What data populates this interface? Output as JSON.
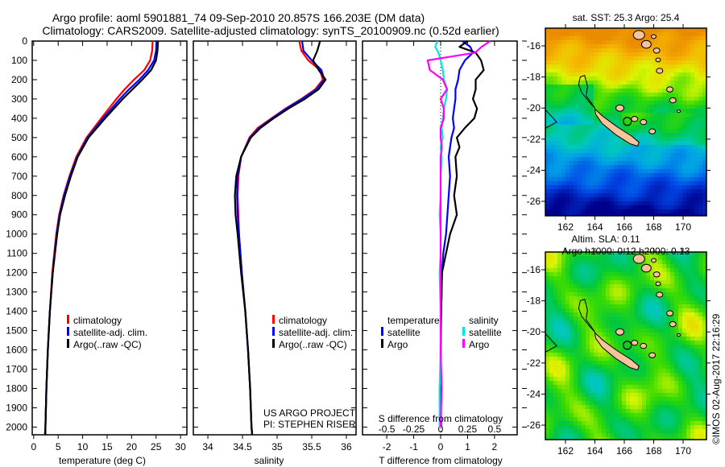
{
  "title": {
    "line1": "Argo profile: aoml 5901881_74 09-Sep-2010 20.857S 166.203E (DM data)",
    "line2": "Climatology: CARS2009. Satellite-adjusted climatology: synTS_20100909.nc (0.52d earlier)"
  },
  "timestamp": "©IMOS 02-Aug-2017 22:16:29",
  "colors": {
    "climatology": "#ff0000",
    "satellite": "#0000ff",
    "argo": "#000000",
    "sal_satellite": "#00e5e5",
    "sal_argo": "#ff00ff",
    "land": "#f7c39a"
  },
  "chart_data": [
    {
      "type": "line",
      "name": "temperature-profile",
      "xlabel": "temperature (deg C)",
      "ylabel": "depth",
      "xlim": [
        -0.3,
        31.3
      ],
      "ylim": [
        2040,
        0
      ],
      "xticks": [
        0,
        5,
        10,
        15,
        20,
        25,
        30
      ],
      "xtick_labels": [
        "0",
        "5",
        "10",
        "15",
        "20",
        "25",
        "30"
      ],
      "yticks": [
        0,
        100,
        200,
        300,
        400,
        500,
        600,
        700,
        800,
        900,
        1000,
        1100,
        1200,
        1300,
        1400,
        1500,
        1600,
        1700,
        1800,
        1900,
        2000
      ],
      "depth": [
        0,
        50,
        100,
        150,
        200,
        250,
        300,
        400,
        500,
        600,
        700,
        800,
        900,
        1000,
        1200,
        1400,
        1600,
        1800,
        2000,
        2040
      ],
      "series": [
        {
          "name": "climatology",
          "values": [
            24.3,
            24.2,
            23.8,
            22.6,
            20.5,
            18.6,
            16.9,
            13.8,
            10.8,
            8.7,
            7.3,
            6.1,
            5.2,
            4.6,
            3.8,
            3.3,
            2.9,
            2.6,
            2.4,
            2.3
          ]
        },
        {
          "name": "satellite-adj. clim.",
          "values": [
            25.1,
            25.0,
            24.6,
            23.4,
            21.6,
            19.5,
            17.6,
            14.2,
            11.0,
            8.9,
            7.4,
            6.2,
            5.3,
            4.7,
            3.9,
            3.3,
            2.9,
            2.6,
            2.4,
            2.3
          ]
        },
        {
          "name": "Argo(..raw -QC)",
          "values": [
            25.4,
            25.3,
            25.0,
            24.0,
            22.2,
            20.2,
            18.2,
            14.6,
            11.2,
            9.0,
            7.6,
            6.4,
            5.4,
            4.8,
            3.9,
            3.3,
            2.9,
            2.6,
            2.4,
            2.4
          ]
        }
      ],
      "legend": [
        "climatology",
        "satellite-adj. clim.",
        "Argo(..raw -QC)"
      ]
    },
    {
      "type": "line",
      "name": "salinity-profile",
      "xlabel": "salinity",
      "xlim": [
        33.79,
        36.14
      ],
      "ylim": [
        2040,
        0
      ],
      "xticks": [
        34,
        34.5,
        35,
        35.5,
        36
      ],
      "xtick_labels": [
        "34",
        "34.5",
        "35",
        "35.5",
        "36"
      ],
      "depth": [
        0,
        50,
        100,
        150,
        200,
        250,
        300,
        350,
        400,
        450,
        500,
        600,
        700,
        800,
        900,
        1000,
        1200,
        1400,
        1600,
        1800,
        2000,
        2040
      ],
      "series": [
        {
          "name": "climatology",
          "values": [
            35.32,
            35.35,
            35.45,
            35.62,
            35.66,
            35.55,
            35.35,
            35.12,
            34.92,
            34.72,
            34.6,
            34.48,
            34.44,
            34.43,
            34.44,
            34.45,
            34.49,
            34.54,
            34.58,
            34.61,
            34.63,
            34.64
          ]
        },
        {
          "name": "satellite-adj. clim.",
          "values": [
            35.36,
            35.38,
            35.5,
            35.64,
            35.68,
            35.57,
            35.36,
            35.13,
            34.93,
            34.74,
            34.61,
            34.48,
            34.43,
            34.42,
            34.43,
            34.45,
            34.49,
            34.54,
            34.58,
            34.61,
            34.63,
            34.64
          ]
        },
        {
          "name": "Argo(..raw -QC)",
          "values": [
            35.62,
            35.58,
            35.52,
            35.6,
            35.7,
            35.6,
            35.4,
            35.16,
            34.95,
            34.76,
            34.62,
            34.48,
            34.41,
            34.39,
            34.4,
            34.43,
            34.48,
            34.54,
            34.58,
            34.61,
            34.63,
            34.64
          ]
        }
      ],
      "legend": [
        "climatology",
        "satellite-adj. clim.",
        "Argo(..raw -QC)"
      ],
      "annotation": [
        "US ARGO PROJECT",
        "PI: STEPHEN RISER"
      ]
    },
    {
      "type": "line",
      "name": "difference-profile",
      "xlabel": "T difference from climatology",
      "xlabel2": "S difference from climatology",
      "xlim": [
        -2.9,
        2.84
      ],
      "xlim_s": [
        -0.725,
        0.71
      ],
      "ylim": [
        2040,
        0
      ],
      "xticks": [
        -2,
        -1,
        0,
        1,
        2
      ],
      "xtick_labels": [
        "-2",
        "-1",
        "0",
        "1",
        "2"
      ],
      "xticks_s": [
        -0.5,
        -0.25,
        0,
        0.25,
        0.5
      ],
      "xtick_labels_s": [
        "-0.5",
        "-0.25",
        "0",
        "0.25",
        "0.5"
      ],
      "depth": [
        0,
        30,
        60,
        100,
        150,
        200,
        250,
        300,
        350,
        400,
        450,
        500,
        550,
        600,
        700,
        800,
        900,
        1000,
        1100,
        1200,
        1400,
        1600,
        1800,
        2000
      ],
      "series": [
        {
          "name": "temperature satellite",
          "var": "T",
          "values": [
            0.8,
            1.1,
            1.2,
            0.9,
            0.7,
            0.65,
            0.55,
            0.55,
            0.5,
            0.45,
            0.5,
            0.4,
            0.35,
            0.3,
            0.35,
            0.3,
            0.25,
            0.2,
            0.1,
            0.05,
            0.02,
            0.01,
            0.0,
            0.02
          ]
        },
        {
          "name": "temperature Argo",
          "var": "T",
          "values": [
            1.0,
            0.7,
            1.3,
            1.5,
            1.6,
            1.3,
            1.3,
            1.2,
            1.35,
            1.25,
            0.9,
            0.6,
            0.7,
            0.55,
            0.6,
            0.5,
            0.6,
            0.35,
            0.2,
            0.05,
            0.02,
            0.0,
            0.0,
            0.0
          ]
        },
        {
          "name": "salinity satellite",
          "var": "S",
          "values": [
            -0.03,
            -0.05,
            -0.02,
            0.0,
            0.02,
            0.03,
            0.06,
            0.05,
            0.03,
            0.02,
            0.01,
            0.02,
            0.0,
            0.01,
            0.0,
            0.0,
            -0.01,
            0.0,
            0.0,
            -0.01,
            0.0,
            0.0,
            -0.01,
            -0.01
          ]
        },
        {
          "name": "salinity Argo",
          "var": "S",
          "values": [
            0.46,
            0.38,
            0.32,
            -0.12,
            -0.1,
            0.02,
            0.06,
            0.0,
            0.03,
            0.03,
            0.0,
            0.0,
            0.01,
            0.0,
            0.0,
            0.0,
            0.0,
            0.0,
            0.0,
            0.0,
            0.0,
            0.0,
            0.01,
            0.0
          ]
        }
      ],
      "legend": {
        "temperature_title": "temperature",
        "salinity_title": "salinity",
        "satellite": "satellite",
        "argo": "Argo"
      }
    },
    {
      "type": "heatmap",
      "name": "sst-map",
      "title": "sat. SST: 25.3 Argo: 25.4",
      "xlim": [
        160.63,
        171.59
      ],
      "ylim": [
        -26.93,
        -14.86
      ],
      "xticks": [
        162,
        164,
        166,
        168,
        170
      ],
      "xtick_labels": [
        "162",
        "164",
        "166",
        "168",
        "170"
      ],
      "yticks": [
        -16,
        -18,
        -20,
        -22,
        -24,
        -26
      ],
      "ytick_labels": [
        "-16",
        "-18",
        "-20",
        "-22",
        "-24",
        "-26"
      ],
      "float_position": [
        166.203,
        -20.857
      ]
    },
    {
      "type": "heatmap",
      "name": "sla-map",
      "title": "Altim. SLA: 0.11",
      "subtitle": "Argo h1000: 0.12 h2000: 0.13",
      "xlim": [
        160.63,
        171.59
      ],
      "ylim": [
        -26.93,
        -14.86
      ],
      "xticks": [
        162,
        164,
        166,
        168,
        170
      ],
      "xtick_labels": [
        "162",
        "164",
        "166",
        "168",
        "170"
      ],
      "yticks": [
        -16,
        -18,
        -20,
        -22,
        -24,
        -26
      ],
      "ytick_labels": [
        "-16",
        "-18",
        "-20",
        "-22",
        "-24",
        "-26"
      ],
      "float_position": [
        166.203,
        -20.857
      ]
    }
  ]
}
